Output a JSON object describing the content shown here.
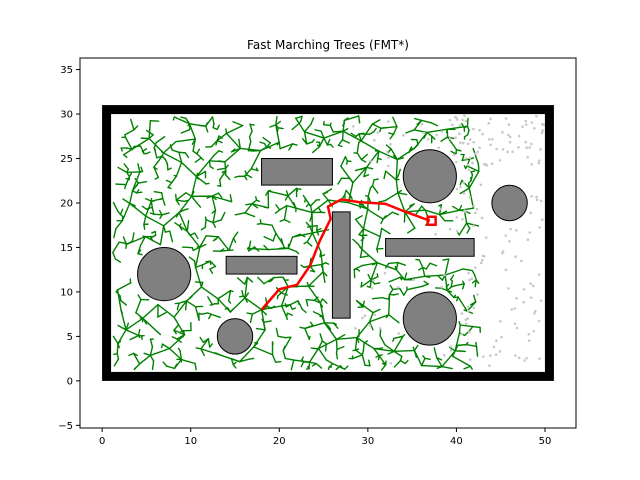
{
  "chart_data": {
    "type": "scatter",
    "title": "Fast Marching Trees (FMT*)",
    "xlabel": "",
    "ylabel": "",
    "xlim": [
      -2.5,
      53.5
    ],
    "ylim": [
      -5.3,
      36.3
    ],
    "xticks": [
      0,
      10,
      20,
      30,
      40,
      50
    ],
    "yticks": [
      -5,
      0,
      5,
      10,
      15,
      20,
      25,
      30,
      35
    ],
    "grid": false,
    "boundary": {
      "x0": 0.5,
      "y0": 0.5,
      "x1": 50.5,
      "y1": 30.5,
      "color": "#000000"
    },
    "rectangles": [
      {
        "x": 18,
        "y": 22,
        "w": 8,
        "h": 3
      },
      {
        "x": 14,
        "y": 12,
        "w": 8,
        "h": 2
      },
      {
        "x": 26,
        "y": 7,
        "w": 2,
        "h": 12
      },
      {
        "x": 32,
        "y": 14,
        "w": 10,
        "h": 2
      }
    ],
    "circles": [
      {
        "cx": 7,
        "cy": 12,
        "r": 3
      },
      {
        "cx": 15,
        "cy": 5,
        "r": 2
      },
      {
        "cx": 37,
        "cy": 7,
        "r": 3
      },
      {
        "cx": 37,
        "cy": 23,
        "r": 3
      },
      {
        "cx": 46,
        "cy": 20,
        "r": 2
      }
    ],
    "obstacle_color": "#808080",
    "tree_color": "#008000",
    "tree_root": [
      18,
      8
    ],
    "unexpanded_sample_color": "#c8c8c8",
    "path": {
      "color": "#ff0000",
      "points": [
        [
          18,
          8
        ],
        [
          20,
          10.3
        ],
        [
          22,
          10.8
        ],
        [
          23.5,
          13
        ],
        [
          24.6,
          15.8
        ],
        [
          25.8,
          18.2
        ],
        [
          25.5,
          19.6
        ],
        [
          27,
          20.4
        ],
        [
          29,
          20.1
        ],
        [
          32,
          19.9
        ],
        [
          34,
          19.1
        ],
        [
          37,
          18
        ]
      ]
    },
    "goal": {
      "x": 37.2,
      "y": 18,
      "color": "#ff0000"
    }
  }
}
